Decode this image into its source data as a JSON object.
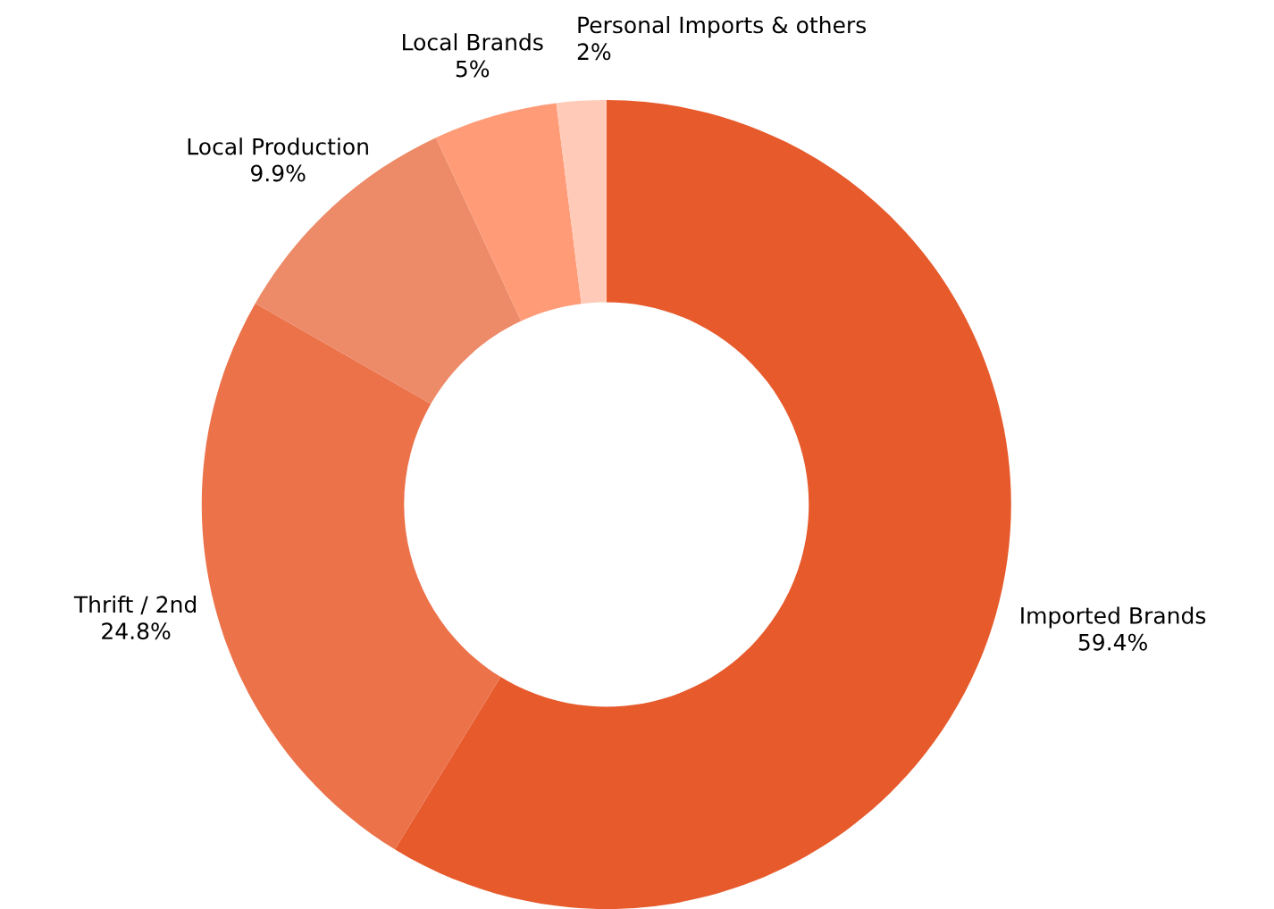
{
  "chart_data": {
    "type": "donut",
    "categories": [
      "Imported Brands",
      "Thrift / 2nd",
      "Local Production",
      "Local Brands",
      "Personal Imports & others"
    ],
    "values": [
      59.4,
      24.8,
      9.9,
      5,
      2
    ],
    "value_labels": [
      "59.4%",
      "24.8%",
      "9.9%",
      "5%",
      "2%"
    ],
    "colors": [
      "#e65a2c",
      "#ec724a",
      "#ed8a68",
      "#ff9b77",
      "#ffcbb8"
    ],
    "legend": false
  }
}
